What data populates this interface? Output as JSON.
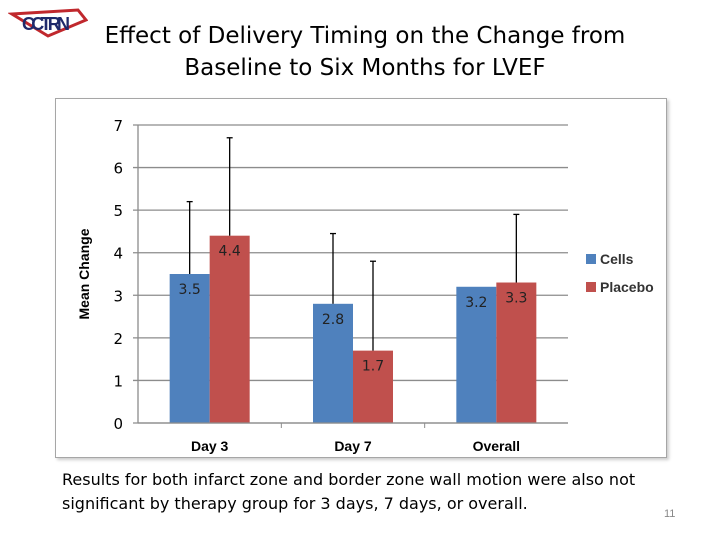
{
  "logo_text": "CCTRN",
  "title": "Effect of Delivery Timing on the Change from Baseline to Six Months for LVEF",
  "caption": "Results for both infarct zone and border zone wall motion were also not significant by therapy group for 3 days, 7 days, or overall.",
  "page_number": "11",
  "chart_data": {
    "type": "bar",
    "title": "",
    "xlabel": "",
    "ylabel": "Mean Change",
    "ylim": [
      0,
      7
    ],
    "yticks": [
      0,
      1,
      2,
      3,
      4,
      5,
      6,
      7
    ],
    "grid": true,
    "legend_placement": "right",
    "categories": [
      "Day 3",
      "Day 7",
      "Overall"
    ],
    "series": [
      {
        "name": "Cells",
        "color": "#4f81bd",
        "values": [
          3.5,
          2.8,
          3.2
        ],
        "error_upper": [
          5.2,
          4.45,
          null
        ],
        "labels": [
          "3.5",
          "2.8",
          "3.2"
        ]
      },
      {
        "name": "Placebo",
        "color": "#c0504d",
        "values": [
          4.4,
          1.7,
          3.3
        ],
        "error_upper": [
          6.7,
          3.8,
          4.9
        ],
        "labels": [
          "4.4",
          "1.7",
          "3.3"
        ]
      }
    ]
  }
}
